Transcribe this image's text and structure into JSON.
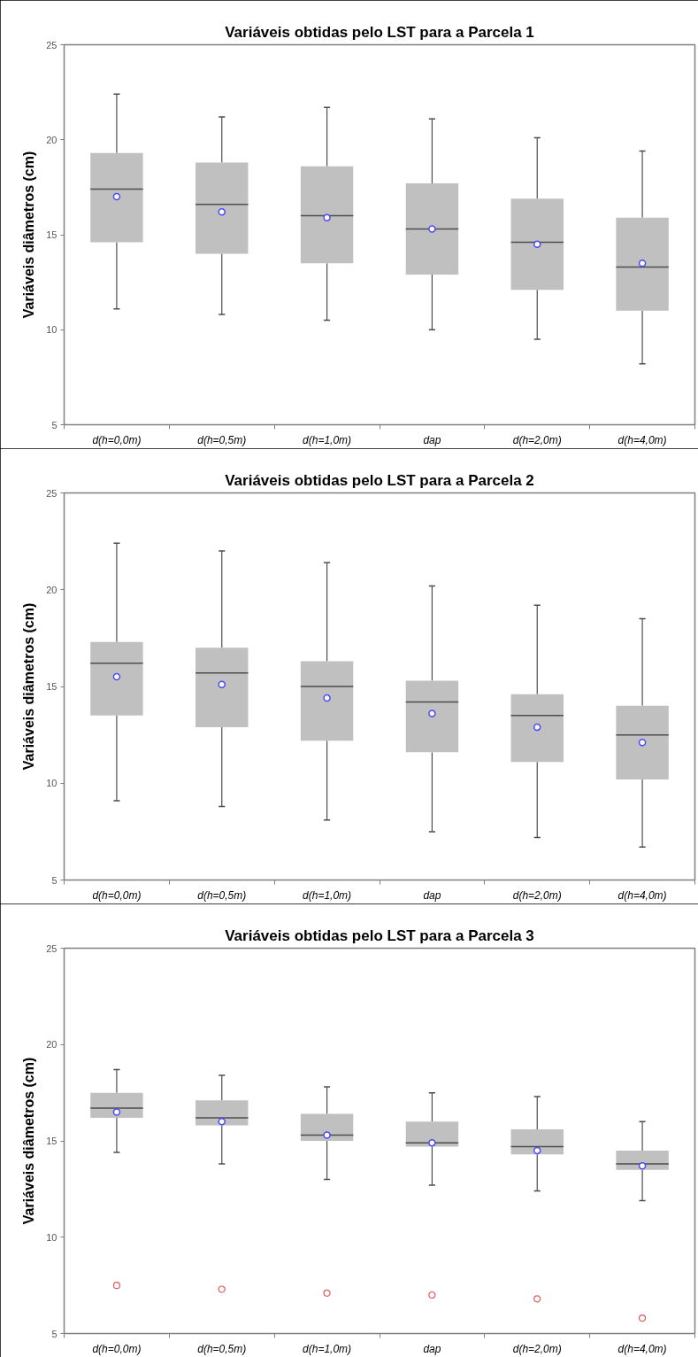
{
  "chart_data": [
    {
      "type": "box",
      "title": "Variáveis obtidas pelo LST para a Parcela 1",
      "ylabel": "Variáveis diâmetros (cm)",
      "categories": [
        "d(h=0,0m)",
        "d(h=0,5m)",
        "d(h=1,0m)",
        "dap",
        "d(h=2,0m)",
        "d(h=4,0m)"
      ],
      "ylim": [
        5,
        25
      ],
      "yticks": [
        5,
        10,
        15,
        20,
        25
      ],
      "color": "#c0c0c0",
      "boxes": [
        {
          "low": 11.1,
          "q1": 14.6,
          "median": 17.4,
          "q3": 19.3,
          "high": 22.4,
          "mean": 17.0
        },
        {
          "low": 10.8,
          "q1": 14.0,
          "median": 16.6,
          "q3": 18.8,
          "high": 21.2,
          "mean": 16.2
        },
        {
          "low": 10.5,
          "q1": 13.5,
          "median": 16.0,
          "q3": 18.6,
          "high": 21.7,
          "mean": 15.9
        },
        {
          "low": 10.0,
          "q1": 12.9,
          "median": 15.3,
          "q3": 17.7,
          "high": 21.1,
          "mean": 15.3
        },
        {
          "low": 9.5,
          "q1": 12.1,
          "median": 14.6,
          "q3": 16.9,
          "high": 20.1,
          "mean": 14.5
        },
        {
          "low": 8.2,
          "q1": 11.0,
          "median": 13.3,
          "q3": 15.9,
          "high": 19.4,
          "mean": 13.5
        }
      ]
    },
    {
      "type": "box",
      "title": "Variáveis obtidas pelo LST para a Parcela 2",
      "ylabel": "Variáveis diâmetros (cm)",
      "categories": [
        "d(h=0,0m)",
        "d(h=0,5m)",
        "d(h=1,0m)",
        "dap",
        "d(h=2,0m)",
        "d(h=4,0m)"
      ],
      "ylim": [
        5,
        25
      ],
      "yticks": [
        5,
        10,
        15,
        20,
        25
      ],
      "color": "#c0c0c0",
      "boxes": [
        {
          "low": 9.1,
          "q1": 13.5,
          "median": 16.2,
          "q3": 17.3,
          "high": 22.4,
          "mean": 15.5
        },
        {
          "low": 8.8,
          "q1": 12.9,
          "median": 15.7,
          "q3": 17.0,
          "high": 22.0,
          "mean": 15.1
        },
        {
          "low": 8.1,
          "q1": 12.2,
          "median": 15.0,
          "q3": 16.3,
          "high": 21.4,
          "mean": 14.4
        },
        {
          "low": 7.5,
          "q1": 11.6,
          "median": 14.2,
          "q3": 15.3,
          "high": 20.2,
          "mean": 13.6
        },
        {
          "low": 7.2,
          "q1": 11.1,
          "median": 13.5,
          "q3": 14.6,
          "high": 19.2,
          "mean": 12.9
        },
        {
          "low": 6.7,
          "q1": 10.2,
          "median": 12.5,
          "q3": 14.0,
          "high": 18.5,
          "mean": 12.1
        }
      ]
    },
    {
      "type": "box",
      "title": "Variáveis obtidas pelo LST para a Parcela 3",
      "ylabel": "Variáveis diâmetros (cm)",
      "categories": [
        "d(h=0,0m)",
        "d(h=0,5m)",
        "d(h=1,0m)",
        "dap",
        "d(h=2,0m)",
        "d(h=4,0m)"
      ],
      "ylim": [
        5,
        25
      ],
      "yticks": [
        5,
        10,
        15,
        20,
        25
      ],
      "color": "#c0c0c0",
      "boxes": [
        {
          "low": 14.4,
          "q1": 16.2,
          "median": 16.7,
          "q3": 17.5,
          "high": 18.7,
          "mean": 16.5,
          "outliers": [
            7.5
          ]
        },
        {
          "low": 13.8,
          "q1": 15.8,
          "median": 16.2,
          "q3": 17.1,
          "high": 18.4,
          "mean": 16.0,
          "outliers": [
            7.3
          ]
        },
        {
          "low": 13.0,
          "q1": 15.0,
          "median": 15.3,
          "q3": 16.4,
          "high": 17.8,
          "mean": 15.3,
          "outliers": [
            7.1
          ]
        },
        {
          "low": 12.7,
          "q1": 14.7,
          "median": 14.9,
          "q3": 16.0,
          "high": 17.5,
          "mean": 14.9,
          "outliers": [
            7.0
          ]
        },
        {
          "low": 12.4,
          "q1": 14.3,
          "median": 14.7,
          "q3": 15.6,
          "high": 17.3,
          "mean": 14.5,
          "outliers": [
            6.8
          ]
        },
        {
          "low": 11.9,
          "q1": 13.5,
          "median": 13.8,
          "q3": 14.5,
          "high": 16.0,
          "mean": 13.7,
          "outliers": [
            5.8
          ]
        }
      ]
    }
  ]
}
